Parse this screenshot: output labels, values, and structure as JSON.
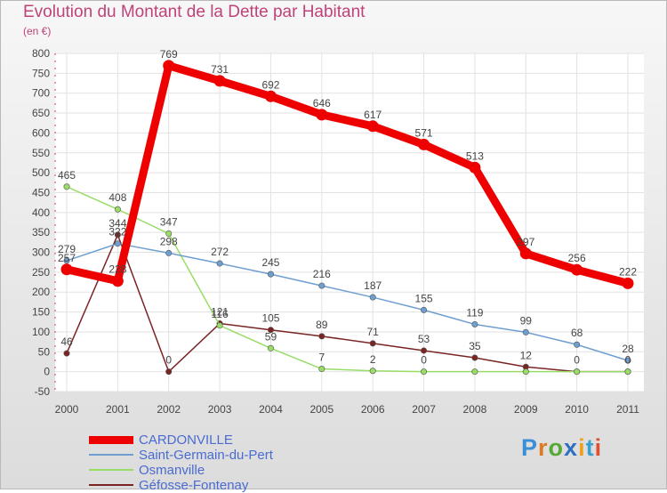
{
  "title": "Evolution du Montant de la Dette par Habitant",
  "unit": "(en €)",
  "brand": "Proxiti",
  "chart_data": {
    "type": "line",
    "x": [
      "2000",
      "2001",
      "2002",
      "2003",
      "2004",
      "2005",
      "2006",
      "2007",
      "2008",
      "2009",
      "2010",
      "2011"
    ],
    "ylim": [
      -50,
      800
    ],
    "yticks": [
      -50,
      0,
      50,
      100,
      150,
      200,
      250,
      300,
      350,
      400,
      450,
      500,
      550,
      600,
      650,
      700,
      750,
      800
    ],
    "grid": true,
    "legend": "bottom-left",
    "series": [
      {
        "name": "CARDONVILLE",
        "color": "#ee0000",
        "values": [
          257,
          228,
          769,
          731,
          692,
          646,
          617,
          571,
          513,
          297,
          256,
          222
        ],
        "labels": [
          "257",
          "228",
          "769",
          "731",
          "692",
          "646",
          "617",
          "571",
          "513",
          "297",
          "256",
          "222"
        ]
      },
      {
        "name": "Saint-Germain-du-Pert",
        "color": "#6f9fd0",
        "values": [
          279,
          322,
          298,
          272,
          245,
          216,
          187,
          155,
          119,
          99,
          68,
          28
        ],
        "labels": [
          "279",
          "322",
          "298",
          "272",
          "245",
          "216",
          "187",
          "155",
          "119",
          "99",
          "68",
          "28"
        ]
      },
      {
        "name": "Osmanville",
        "color": "#99dd66",
        "values": [
          465,
          408,
          347,
          116,
          59,
          7,
          2,
          0,
          0,
          0,
          0,
          0
        ],
        "labels": [
          "465",
          "408",
          "347",
          "116",
          "59",
          "7",
          "2",
          "0",
          "",
          "",
          "",
          ""
        ]
      },
      {
        "name": "Géfosse-Fontenay",
        "color": "#7a2424",
        "values": [
          46,
          344,
          0,
          121,
          105,
          89,
          71,
          53,
          35,
          12,
          0,
          0
        ],
        "labels": [
          "46",
          "344",
          "0",
          "121",
          "105",
          "89",
          "71",
          "53",
          "35",
          "12",
          "0",
          "0"
        ]
      }
    ]
  }
}
